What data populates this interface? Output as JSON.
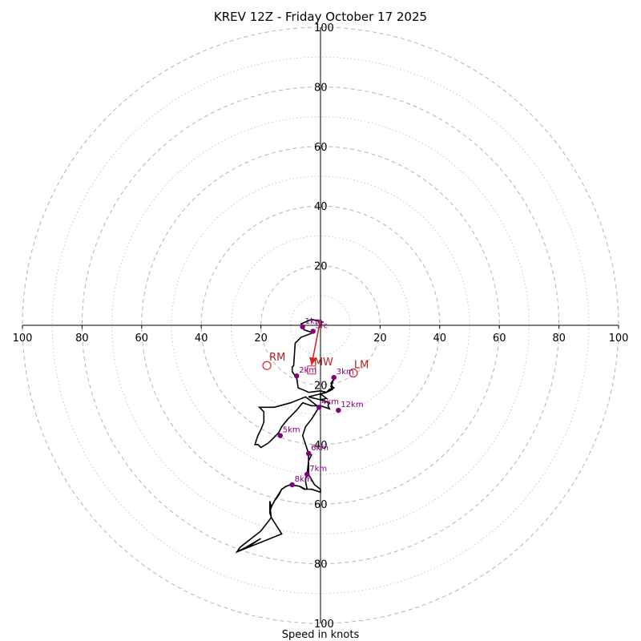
{
  "chart_data": {
    "type": "hodograph",
    "title": "KREV 12Z - Friday October 17 2025",
    "xlabel": "Speed in knots",
    "range": [
      -100,
      100
    ],
    "rings_major": [
      20,
      40,
      60,
      80,
      100
    ],
    "rings_minor": [
      10,
      30,
      50,
      70,
      90
    ],
    "ticks": [
      {
        "v": -100,
        "label": "100"
      },
      {
        "v": -80,
        "label": "80"
      },
      {
        "v": -60,
        "label": "60"
      },
      {
        "v": -40,
        "label": "40"
      },
      {
        "v": -20,
        "label": "20"
      },
      {
        "v": 20,
        "label": "20"
      },
      {
        "v": 40,
        "label": "40"
      },
      {
        "v": 60,
        "label": "60"
      },
      {
        "v": 80,
        "label": "80"
      },
      {
        "v": 100,
        "label": "100"
      }
    ],
    "trace": {
      "name": "wind profile",
      "color": "#000000",
      "points": [
        [
          1,
          1
        ],
        [
          -3,
          2
        ],
        [
          -6.5,
          0.5
        ],
        [
          -5.5,
          -1.5
        ],
        [
          -2.5,
          -2.5
        ],
        [
          -6.5,
          -4
        ],
        [
          -8.5,
          -6
        ],
        [
          -9,
          -13.5
        ],
        [
          -9.5,
          -14
        ],
        [
          -9.5,
          -15.5
        ],
        [
          -8.5,
          -17
        ],
        [
          -8,
          -17.5
        ],
        [
          -7.5,
          -21
        ],
        [
          -5,
          -22
        ],
        [
          -4,
          -22.5
        ],
        [
          0,
          -22
        ],
        [
          2,
          -22.5
        ],
        [
          3,
          -21.5
        ],
        [
          4.5,
          -21
        ],
        [
          4,
          -20.5
        ],
        [
          3.5,
          -19.5
        ],
        [
          4.5,
          -18
        ],
        [
          3.5,
          -20.5
        ],
        [
          4,
          -21.5
        ],
        [
          2,
          -22.5
        ],
        [
          0,
          -23
        ],
        [
          -2,
          -23.5
        ],
        [
          -4,
          -24
        ],
        [
          0,
          -25
        ],
        [
          0,
          -23
        ],
        [
          2,
          -24.5
        ],
        [
          0,
          -25
        ],
        [
          3,
          -26
        ],
        [
          2.5,
          -27
        ],
        [
          3,
          -28
        ],
        [
          0,
          -27
        ],
        [
          -3,
          -27
        ],
        [
          -6,
          -26
        ],
        [
          -8,
          -28.5
        ],
        [
          -11,
          -31.5
        ],
        [
          -13,
          -34
        ],
        [
          -14,
          -36
        ],
        [
          -16,
          -38
        ],
        [
          -17.5,
          -39.5
        ],
        [
          -20,
          -41
        ],
        [
          -21,
          -40
        ],
        [
          -22,
          -40
        ],
        [
          -21.5,
          -38.5
        ],
        [
          -21,
          -37
        ],
        [
          -20,
          -35
        ],
        [
          -19,
          -32.5
        ],
        [
          -19,
          -29
        ],
        [
          -20.5,
          -27.5
        ],
        [
          -18,
          -27.5
        ],
        [
          -16,
          -27.5
        ],
        [
          -15.5,
          -27.5
        ],
        [
          -10,
          -26
        ],
        [
          -5,
          -24
        ],
        [
          -0.5,
          -27.5
        ],
        [
          -3,
          -31.5
        ],
        [
          -5,
          -34
        ],
        [
          -6,
          -37
        ],
        [
          -4,
          -43
        ],
        [
          -3,
          -43.5
        ],
        [
          -4,
          -45.5
        ],
        [
          -4.5,
          -50
        ],
        [
          -5,
          -51.5
        ],
        [
          -5,
          -52.5
        ],
        [
          -4.5,
          -55
        ],
        [
          -5.5,
          -55
        ],
        [
          -7,
          -54
        ],
        [
          -10,
          -53.5
        ],
        [
          -11.5,
          -54
        ],
        [
          -13,
          -55
        ],
        [
          -14,
          -57
        ],
        [
          -15.5,
          -59
        ],
        [
          -16.5,
          -61
        ],
        [
          -17,
          -62.5
        ],
        [
          -17,
          -59
        ],
        [
          -17,
          -60.5
        ],
        [
          -16.5,
          -64.5
        ],
        [
          -13,
          -70
        ],
        [
          -28,
          -76
        ],
        [
          -23,
          -73.5
        ],
        [
          -20,
          -71.5
        ],
        [
          -25,
          -74.5
        ],
        [
          -28,
          -76
        ],
        [
          -27,
          -74.5
        ],
        [
          -20,
          -69
        ],
        [
          -16.5,
          -64.5
        ],
        [
          -13,
          -70
        ],
        [
          -16.5,
          -64.5
        ],
        [
          -17,
          -63
        ],
        [
          -17,
          -62.5
        ],
        [
          -17,
          -59
        ],
        [
          -16.5,
          -61
        ],
        [
          -15.5,
          -59
        ],
        [
          -13,
          -55
        ],
        [
          -11.5,
          -54
        ],
        [
          -10,
          -53.5
        ],
        [
          -7,
          -54
        ],
        [
          -5,
          -55
        ],
        [
          -3,
          -55
        ],
        [
          0,
          -56
        ],
        [
          0,
          -55
        ],
        [
          -2,
          -53.5
        ],
        [
          -4,
          -50
        ],
        [
          -4,
          -43
        ]
      ]
    },
    "height_markers": [
      {
        "label": "1km",
        "u": -6,
        "v": -0.5
      },
      {
        "label": "Sfc",
        "u": -2.5,
        "v": -2
      },
      {
        "label": "2km",
        "u": -8,
        "v": -17
      },
      {
        "label": "3km",
        "u": 4.5,
        "v": -17.5
      },
      {
        "label": "4km",
        "u": -0.5,
        "v": -27.5
      },
      {
        "label": "12km",
        "u": 6,
        "v": -28.5
      },
      {
        "label": "5km",
        "u": -13.5,
        "v": -37
      },
      {
        "label": "6km",
        "u": -4,
        "v": -43
      },
      {
        "label": "7km",
        "u": -4.5,
        "v": -50
      },
      {
        "label": "8km",
        "u": -9.5,
        "v": -53.5
      }
    ],
    "storm_motion": {
      "color": "#d62728",
      "label_color": "#b22222",
      "mean_wind": {
        "label": "MW",
        "u": -3,
        "v": -15
      },
      "right_mover": {
        "label": "RM",
        "u": -18,
        "v": -13.5
      },
      "left_mover": {
        "label": "LM",
        "u": 11,
        "v": -16
      },
      "arrow_start": {
        "u": 0,
        "v": 2
      }
    }
  }
}
